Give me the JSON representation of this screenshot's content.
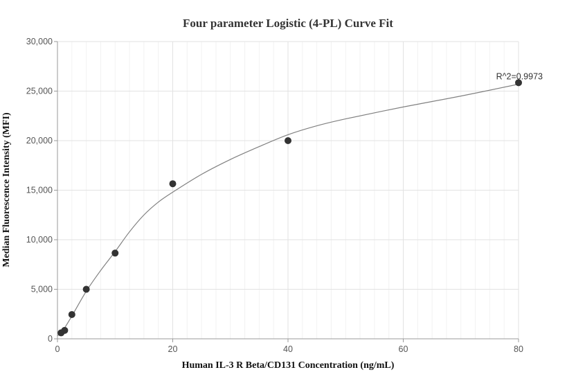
{
  "chart_data": {
    "type": "scatter",
    "title": "Four parameter Logistic (4-PL) Curve Fit",
    "xlabel": "Human IL-3 R Beta/CD131 Concentration (ng/mL)",
    "ylabel": "Median Fluorescence Intensity (MFI)",
    "xlim": [
      0,
      80
    ],
    "ylim": [
      0,
      30000
    ],
    "x_ticks": [
      0,
      20,
      40,
      60,
      80
    ],
    "x_tick_labels": [
      "0",
      "20",
      "40",
      "60",
      "80"
    ],
    "y_ticks": [
      0,
      5000,
      10000,
      15000,
      20000,
      25000,
      30000
    ],
    "y_tick_labels": [
      "0",
      "5,000",
      "10,000",
      "15,000",
      "20,000",
      "25,000",
      "30,000"
    ],
    "grid": true,
    "series": [
      {
        "kind": "points",
        "x": [
          0.625,
          1.25,
          2.5,
          5,
          10,
          20,
          40,
          80
        ],
        "y": [
          600,
          850,
          2450,
          5000,
          8650,
          15650,
          20000,
          25850
        ],
        "color": "#333333"
      },
      {
        "kind": "fit-curve",
        "x": [
          0,
          1,
          2.5,
          5,
          7.5,
          10,
          12.5,
          15,
          17.5,
          20,
          25,
          30,
          35,
          40,
          45,
          50,
          60,
          70,
          80
        ],
        "y": [
          300,
          900,
          2300,
          4800,
          6900,
          8800,
          10800,
          12500,
          13800,
          14800,
          16600,
          18100,
          19400,
          20600,
          21500,
          22200,
          23400,
          24500,
          25700
        ],
        "color": "#808080"
      }
    ],
    "annotations": [
      {
        "text": "R^2=0.9973",
        "x": 80,
        "y": 25850
      }
    ]
  }
}
